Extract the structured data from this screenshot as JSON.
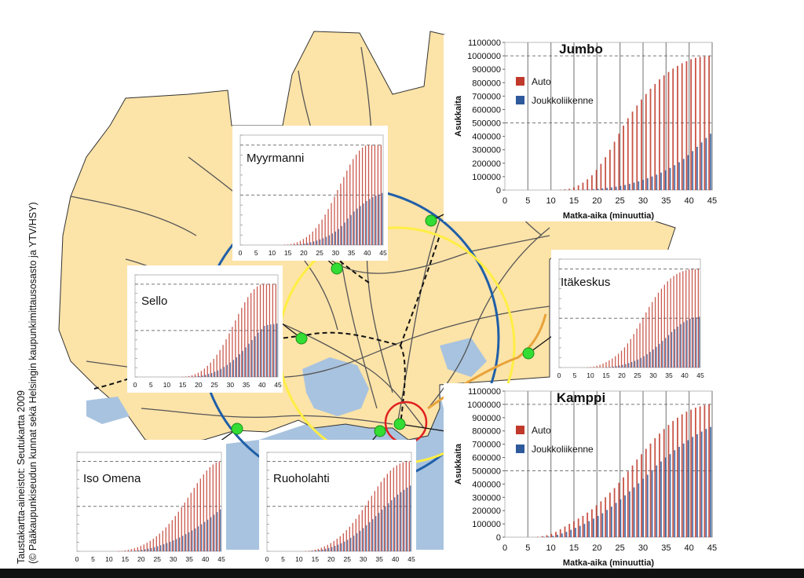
{
  "credit": {
    "line1": "Taustakartta-aineistot: Seutukartta 2009",
    "line2": "(© Pääkaupunkiseudun kunnat sekä Helsingin kaupunkimittausosasto ja YTV/HSY)"
  },
  "colors": {
    "map_land": "#fce3a8",
    "map_water": "#a8c3df",
    "road": "#555555",
    "circle_blue": "#1f5fa8",
    "circle_yellow": "#ffee44",
    "metro_orange": "#e8a23a",
    "station_marker": "#33dd33",
    "highlight_ring": "#e02020",
    "auto": "#c0392b",
    "joukkoliikenne": "#2e5a9c"
  },
  "legend": {
    "auto": "Auto",
    "joukkoliikenne": "Joukkoliikenne"
  },
  "chart_data": [
    {
      "id": "jumbo",
      "type": "bar",
      "title": "Jumbo",
      "xlabel": "Matka-aika (minuuttia)",
      "ylabel": "Asukkaita",
      "ylim": [
        0,
        1100000
      ],
      "xlim": [
        0,
        45
      ],
      "x_ticks": [
        0,
        5,
        10,
        15,
        20,
        25,
        30,
        35,
        40,
        45
      ],
      "y_ticks": [
        0,
        100000,
        200000,
        300000,
        400000,
        500000,
        600000,
        700000,
        800000,
        900000,
        1000000,
        1100000
      ],
      "hlines": [
        500000,
        1000000
      ],
      "legend": true,
      "series": [
        {
          "name": "Auto",
          "color": "#c0392b",
          "values": [
            0,
            0,
            0,
            0,
            0,
            0,
            0,
            0,
            0,
            0,
            0,
            0,
            2000,
            5000,
            10000,
            20000,
            35000,
            55000,
            80000,
            110000,
            150000,
            195000,
            245000,
            300000,
            360000,
            420000,
            480000,
            535000,
            585000,
            630000,
            675000,
            715000,
            755000,
            790000,
            825000,
            855000,
            880000,
            905000,
            925000,
            945000,
            960000,
            975000,
            985000,
            992000,
            996000,
            1000000
          ]
        },
        {
          "name": "Joukkoliikenne",
          "color": "#2e5a9c",
          "values": [
            0,
            0,
            0,
            0,
            0,
            0,
            0,
            0,
            0,
            0,
            0,
            0,
            0,
            0,
            0,
            0,
            0,
            2000,
            4000,
            6000,
            9000,
            12000,
            16000,
            20000,
            25000,
            31000,
            38000,
            46000,
            55000,
            65000,
            76000,
            88000,
            101000,
            115000,
            130000,
            147000,
            165000,
            185000,
            207000,
            232000,
            260000,
            290000,
            322000,
            355000,
            388000,
            420000
          ]
        }
      ]
    },
    {
      "id": "kamppi",
      "type": "bar",
      "title": "Kamppi",
      "xlabel": "Matka-aika (minuuttia)",
      "ylabel": "Asukkaita",
      "ylim": [
        0,
        1100000
      ],
      "xlim": [
        0,
        45
      ],
      "x_ticks": [
        0,
        5,
        10,
        15,
        20,
        25,
        30,
        35,
        40,
        45
      ],
      "y_ticks": [
        0,
        100000,
        200000,
        300000,
        400000,
        500000,
        600000,
        700000,
        800000,
        900000,
        1000000,
        1100000
      ],
      "hlines": [
        500000,
        1000000
      ],
      "legend": true,
      "series": [
        {
          "name": "Auto",
          "color": "#c0392b",
          "values": [
            0,
            0,
            0,
            0,
            0,
            0,
            0,
            3000,
            8000,
            15000,
            25000,
            40000,
            60000,
            80000,
            100000,
            120000,
            140000,
            160000,
            185000,
            210000,
            240000,
            270000,
            300000,
            335000,
            370000,
            410000,
            450000,
            495000,
            540000,
            585000,
            625000,
            665000,
            705000,
            745000,
            780000,
            815000,
            845000,
            875000,
            900000,
            925000,
            945000,
            960000,
            975000,
            985000,
            995000,
            1000000
          ]
        },
        {
          "name": "Joukkoliikenne",
          "color": "#2e5a9c",
          "values": [
            0,
            0,
            0,
            0,
            0,
            0,
            0,
            0,
            2000,
            5000,
            10000,
            18000,
            28000,
            40000,
            55000,
            70000,
            85000,
            100000,
            120000,
            140000,
            160000,
            180000,
            205000,
            230000,
            258000,
            285000,
            315000,
            345000,
            375000,
            405000,
            440000,
            470000,
            505000,
            540000,
            570000,
            600000,
            625000,
            655000,
            680000,
            705000,
            730000,
            755000,
            775000,
            795000,
            815000,
            830000
          ]
        }
      ]
    },
    {
      "id": "myyrmanni",
      "type": "bar",
      "title": "Myyrmanni",
      "x_ticks": [
        0,
        5,
        10,
        15,
        20,
        25,
        30,
        35,
        40,
        45
      ],
      "xlim": [
        0,
        45
      ],
      "ylim": [
        0,
        1100000
      ],
      "hlines": [
        500000,
        1000000
      ],
      "legend": false,
      "series": [
        {
          "name": "Auto",
          "color": "#c0392b",
          "values": [
            0,
            0,
            0,
            0,
            0,
            0,
            0,
            0,
            0,
            0,
            0,
            0,
            0,
            0,
            2000,
            5000,
            10000,
            18000,
            28000,
            42000,
            60000,
            80000,
            105000,
            135000,
            170000,
            210000,
            255000,
            305000,
            360000,
            420000,
            485000,
            550000,
            615000,
            680000,
            745000,
            805000,
            860000,
            905000,
            945000,
            975000,
            995000,
            1000000,
            1000000,
            1000000,
            1000000,
            1000000
          ]
        },
        {
          "name": "Joukkoliikenne",
          "color": "#2e5a9c",
          "values": [
            0,
            0,
            0,
            0,
            0,
            0,
            0,
            0,
            0,
            0,
            0,
            0,
            0,
            0,
            0,
            0,
            0,
            2000,
            5000,
            9000,
            14000,
            20000,
            27000,
            35000,
            45000,
            56000,
            68000,
            82000,
            98000,
            115000,
            135000,
            160000,
            190000,
            225000,
            265000,
            300000,
            335000,
            365000,
            390000,
            415000,
            440000,
            460000,
            480000,
            495000,
            505000,
            520000
          ]
        }
      ]
    },
    {
      "id": "itakeskus",
      "type": "bar",
      "title": "Itäkeskus",
      "x_ticks": [
        0,
        5,
        10,
        15,
        20,
        25,
        30,
        35,
        40,
        45
      ],
      "xlim": [
        0,
        45
      ],
      "ylim": [
        0,
        1100000
      ],
      "hlines": [
        500000,
        1000000
      ],
      "legend": false,
      "series": [
        {
          "name": "Auto",
          "color": "#c0392b",
          "values": [
            0,
            0,
            0,
            0,
            0,
            0,
            0,
            0,
            0,
            2000,
            5000,
            10000,
            18000,
            28000,
            40000,
            55000,
            72000,
            92000,
            115000,
            140000,
            170000,
            205000,
            245000,
            290000,
            340000,
            395000,
            450000,
            505000,
            560000,
            615000,
            665000,
            715000,
            760000,
            800000,
            840000,
            875000,
            905000,
            930000,
            950000,
            965000,
            978000,
            988000,
            995000,
            1000000,
            1000000,
            1000000
          ]
        },
        {
          "name": "Joukkoliikenne",
          "color": "#2e5a9c",
          "values": [
            0,
            0,
            0,
            0,
            0,
            0,
            0,
            0,
            0,
            0,
            0,
            0,
            0,
            0,
            0,
            2000,
            5000,
            9000,
            14000,
            20000,
            27000,
            35000,
            45000,
            56000,
            68000,
            82000,
            98000,
            115000,
            135000,
            158000,
            183000,
            210000,
            240000,
            270000,
            300000,
            330000,
            360000,
            390000,
            415000,
            440000,
            460000,
            480000,
            495000,
            505000,
            510000,
            515000
          ]
        }
      ]
    },
    {
      "id": "sello",
      "type": "bar",
      "title": "Sello",
      "x_ticks": [
        0,
        5,
        10,
        15,
        20,
        25,
        30,
        35,
        40,
        45
      ],
      "xlim": [
        0,
        45
      ],
      "ylim": [
        0,
        1100000
      ],
      "hlines": [
        500000,
        1000000
      ],
      "legend": false,
      "series": [
        {
          "name": "Auto",
          "color": "#c0392b",
          "values": [
            0,
            0,
            0,
            0,
            0,
            0,
            0,
            0,
            0,
            0,
            0,
            0,
            0,
            0,
            0,
            2000,
            5000,
            10000,
            18000,
            30000,
            45000,
            65000,
            90000,
            120000,
            155000,
            195000,
            240000,
            290000,
            345000,
            405000,
            470000,
            540000,
            610000,
            680000,
            745000,
            805000,
            860000,
            905000,
            945000,
            975000,
            995000,
            1000000,
            1000000,
            1000000,
            1000000,
            1000000
          ]
        },
        {
          "name": "Joukkoliikenne",
          "color": "#2e5a9c",
          "values": [
            0,
            0,
            0,
            0,
            0,
            0,
            0,
            0,
            0,
            0,
            0,
            0,
            0,
            0,
            0,
            0,
            0,
            0,
            2000,
            5000,
            10000,
            16000,
            23000,
            32000,
            42000,
            55000,
            70000,
            88000,
            108000,
            130000,
            155000,
            182000,
            212000,
            245000,
            280000,
            318000,
            358000,
            398000,
            438000,
            478000,
            515000,
            550000,
            560000,
            565000,
            570000,
            575000
          ]
        }
      ]
    },
    {
      "id": "iso-omena",
      "type": "bar",
      "title": "Iso Omena",
      "x_ticks": [
        0,
        5,
        10,
        15,
        20,
        25,
        30,
        35,
        40,
        45
      ],
      "xlim": [
        0,
        45
      ],
      "ylim": [
        0,
        1100000
      ],
      "hlines": [
        500000,
        1000000
      ],
      "legend": false,
      "series": [
        {
          "name": "Auto",
          "color": "#c0392b",
          "values": [
            0,
            0,
            0,
            0,
            0,
            0,
            0,
            0,
            0,
            0,
            0,
            0,
            0,
            2000,
            5000,
            10000,
            16000,
            24000,
            34000,
            46000,
            60000,
            76000,
            95000,
            116000,
            140000,
            167000,
            197000,
            230000,
            266000,
            305000,
            347000,
            392000,
            440000,
            490000,
            542000,
            596000,
            650000,
            705000,
            758000,
            808000,
            855000,
            898000,
            935000,
            965000,
            988000,
            1000000
          ]
        },
        {
          "name": "Joukkoliikenne",
          "color": "#2e5a9c",
          "values": [
            0,
            0,
            0,
            0,
            0,
            0,
            0,
            0,
            0,
            0,
            0,
            0,
            0,
            0,
            0,
            0,
            2000,
            4000,
            7000,
            11000,
            16000,
            22000,
            29000,
            37000,
            46000,
            56000,
            67000,
            79000,
            92000,
            106000,
            121000,
            137000,
            154000,
            172000,
            191000,
            211000,
            232000,
            254000,
            277000,
            301000,
            326000,
            352000,
            379000,
            407000,
            436000,
            466000
          ]
        }
      ]
    },
    {
      "id": "ruoholahti",
      "type": "bar",
      "title": "Ruoholahti",
      "x_ticks": [
        0,
        5,
        10,
        15,
        20,
        25,
        30,
        35,
        40,
        45
      ],
      "xlim": [
        0,
        45
      ],
      "ylim": [
        0,
        1100000
      ],
      "hlines": [
        500000,
        1000000
      ],
      "legend": false,
      "series": [
        {
          "name": "Auto",
          "color": "#c0392b",
          "values": [
            0,
            0,
            0,
            0,
            0,
            0,
            0,
            0,
            0,
            0,
            0,
            0,
            2000,
            5000,
            10000,
            18000,
            28000,
            40000,
            55000,
            72000,
            92000,
            115000,
            140000,
            168000,
            200000,
            235000,
            273000,
            315000,
            360000,
            408000,
            458000,
            510000,
            563000,
            617000,
            670000,
            722000,
            772000,
            818000,
            860000,
            898000,
            930000,
            955000,
            975000,
            990000,
            998000,
            1000000
          ]
        },
        {
          "name": "Joukkoliikenne",
          "color": "#2e5a9c",
          "values": [
            0,
            0,
            0,
            0,
            0,
            0,
            0,
            0,
            0,
            0,
            0,
            0,
            0,
            2000,
            5000,
            9000,
            14000,
            20000,
            28000,
            37000,
            48000,
            60000,
            74000,
            90000,
            108000,
            128000,
            150000,
            174000,
            200000,
            228000,
            258000,
            290000,
            323000,
            357000,
            392000,
            428000,
            464000,
            500000,
            535000,
            568000,
            600000,
            630000,
            658000,
            684000,
            708000,
            730000
          ]
        }
      ]
    }
  ]
}
